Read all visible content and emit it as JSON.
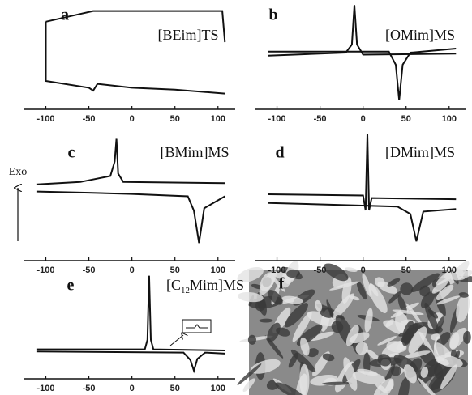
{
  "chart_data": [
    {
      "type": "line",
      "label": "a",
      "sample": "[BEim]TS",
      "xlim": [
        -125,
        120
      ],
      "xticks": [
        -100,
        -50,
        0,
        50,
        100
      ],
      "ylim": [
        0,
        100
      ],
      "series": [
        {
          "color": "#111111",
          "x": [
            -100,
            -60,
            -45,
            0,
            50,
            105,
            108
          ],
          "values": [
            86,
            94,
            97,
            97,
            97,
            97,
            65
          ]
        },
        {
          "color": "#111111",
          "x": [
            -100,
            -100,
            -50,
            -45,
            -40,
            0,
            50,
            108
          ],
          "values": [
            86,
            25,
            18,
            15,
            22,
            18,
            16,
            12
          ]
        }
      ]
    },
    {
      "type": "line",
      "label": "b",
      "sample": "[OMim]MS",
      "xlim": [
        -125,
        120
      ],
      "xticks": [
        -100,
        -50,
        0,
        50,
        100
      ],
      "ylim": [
        0,
        100
      ],
      "series": [
        {
          "color": "#111111",
          "x": [
            -110,
            -20,
            -13,
            -10,
            -7,
            0,
            108
          ],
          "values": [
            49,
            52,
            60,
            99,
            60,
            50,
            51
          ]
        },
        {
          "color": "#111111",
          "x": [
            -110,
            30,
            38,
            42,
            46,
            55,
            108
          ],
          "values": [
            53,
            53,
            40,
            5,
            40,
            52,
            56
          ]
        }
      ]
    },
    {
      "type": "line",
      "label": "c",
      "sample": "[BMim]MS",
      "xlim": [
        -125,
        120
      ],
      "xticks": [
        -100,
        -50,
        0,
        50,
        100
      ],
      "ylim": [
        0,
        100
      ],
      "series": [
        {
          "color": "#111111",
          "x": [
            -110,
            -60,
            -25,
            -20,
            -18,
            -16,
            -10,
            108
          ],
          "values": [
            61,
            63,
            68,
            80,
            99,
            70,
            63,
            62
          ]
        },
        {
          "color": "#111111",
          "x": [
            -110,
            -50,
            0,
            65,
            72,
            78,
            84,
            108
          ],
          "values": [
            55,
            54,
            53,
            51,
            39,
            12,
            41,
            51
          ]
        }
      ]
    },
    {
      "type": "line",
      "label": "d",
      "sample": "[DMim]MS",
      "xlim": [
        -125,
        120
      ],
      "xticks": [
        -100,
        -50,
        0,
        50,
        100
      ],
      "ylim": [
        0,
        100
      ],
      "series": [
        {
          "color": "#111111",
          "x": [
            -110,
            0,
            3,
            5,
            7,
            10,
            108
          ],
          "values": [
            51,
            50,
            38,
            100,
            38,
            48,
            47
          ]
        },
        {
          "color": "#111111",
          "x": [
            -110,
            40,
            55,
            62,
            70,
            108
          ],
          "values": [
            44,
            41,
            35,
            13,
            37,
            39
          ]
        }
      ]
    },
    {
      "type": "line",
      "label": "e",
      "sample": "[C12Mim]MS",
      "xlim": [
        -125,
        120
      ],
      "xticks": [
        -100,
        -50,
        0,
        50,
        100
      ],
      "ylim": [
        0,
        100
      ],
      "series": [
        {
          "color": "#111111",
          "x": [
            -110,
            15,
            18,
            20,
            22,
            25,
            108
          ],
          "values": [
            23,
            23,
            32,
            92,
            32,
            23,
            22
          ]
        },
        {
          "color": "#111111",
          "x": [
            -110,
            60,
            68,
            72,
            76,
            85,
            108
          ],
          "values": [
            21,
            20,
            13,
            3,
            14,
            20,
            19
          ]
        }
      ]
    },
    {
      "type": "image",
      "label": "f"
    }
  ],
  "annotation": "Exo"
}
